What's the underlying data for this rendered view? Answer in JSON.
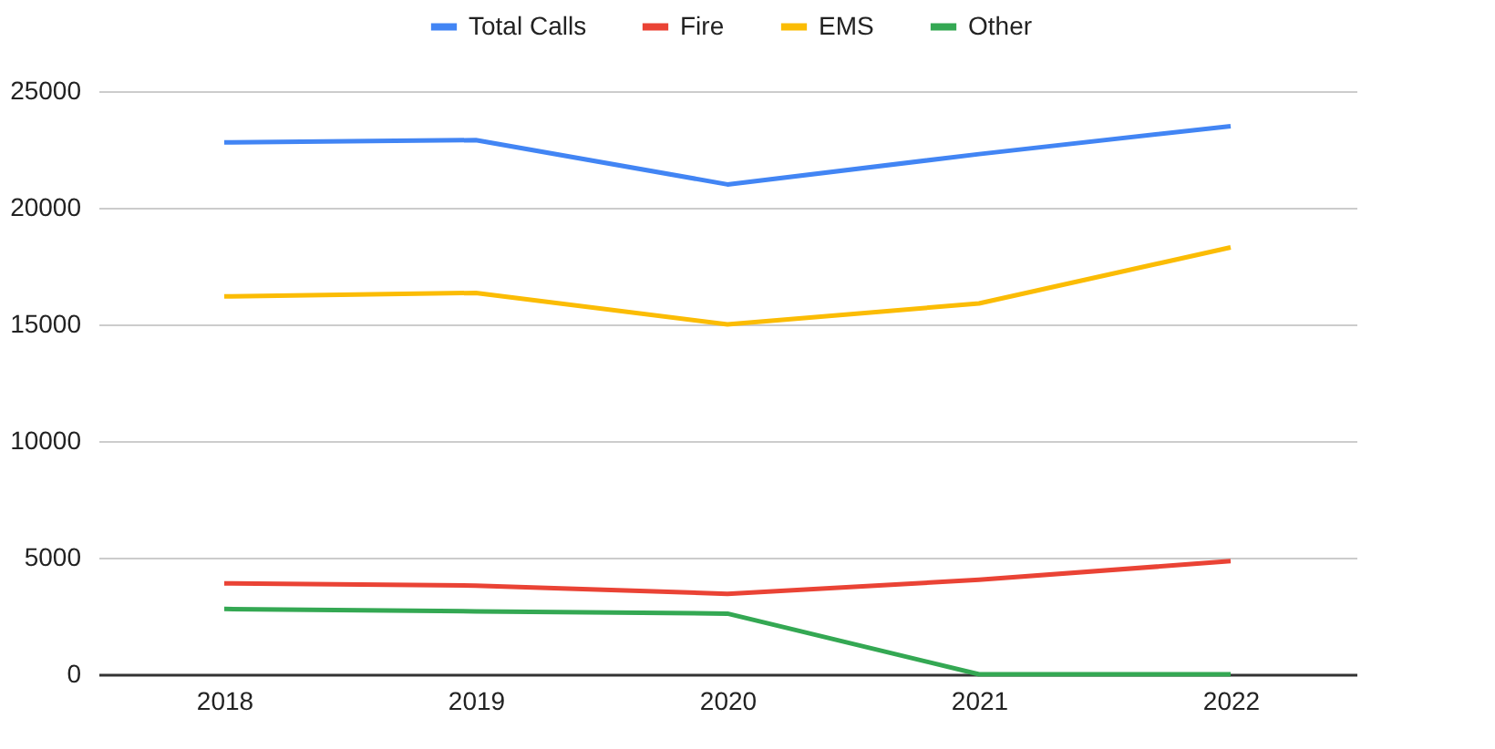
{
  "chart_data": {
    "type": "line",
    "categories": [
      "2018",
      "2019",
      "2020",
      "2021",
      "2022"
    ],
    "series": [
      {
        "name": "Total Calls",
        "color": "#4285f4",
        "values": [
          22800,
          22900,
          21000,
          22300,
          23500
        ]
      },
      {
        "name": "Fire",
        "color": "#ea4335",
        "values": [
          3900,
          3800,
          3450,
          4050,
          4850
        ]
      },
      {
        "name": "EMS",
        "color": "#fbbc04",
        "values": [
          16200,
          16350,
          15000,
          15900,
          18300
        ]
      },
      {
        "name": "Other",
        "color": "#34a853",
        "values": [
          2800,
          2700,
          2600,
          0,
          0
        ]
      }
    ],
    "ylim": [
      0,
      25000
    ],
    "yticks": [
      0,
      5000,
      10000,
      15000,
      20000,
      25000
    ],
    "grid": "y",
    "legend": "top",
    "marker": "none",
    "line_style": "solid"
  }
}
